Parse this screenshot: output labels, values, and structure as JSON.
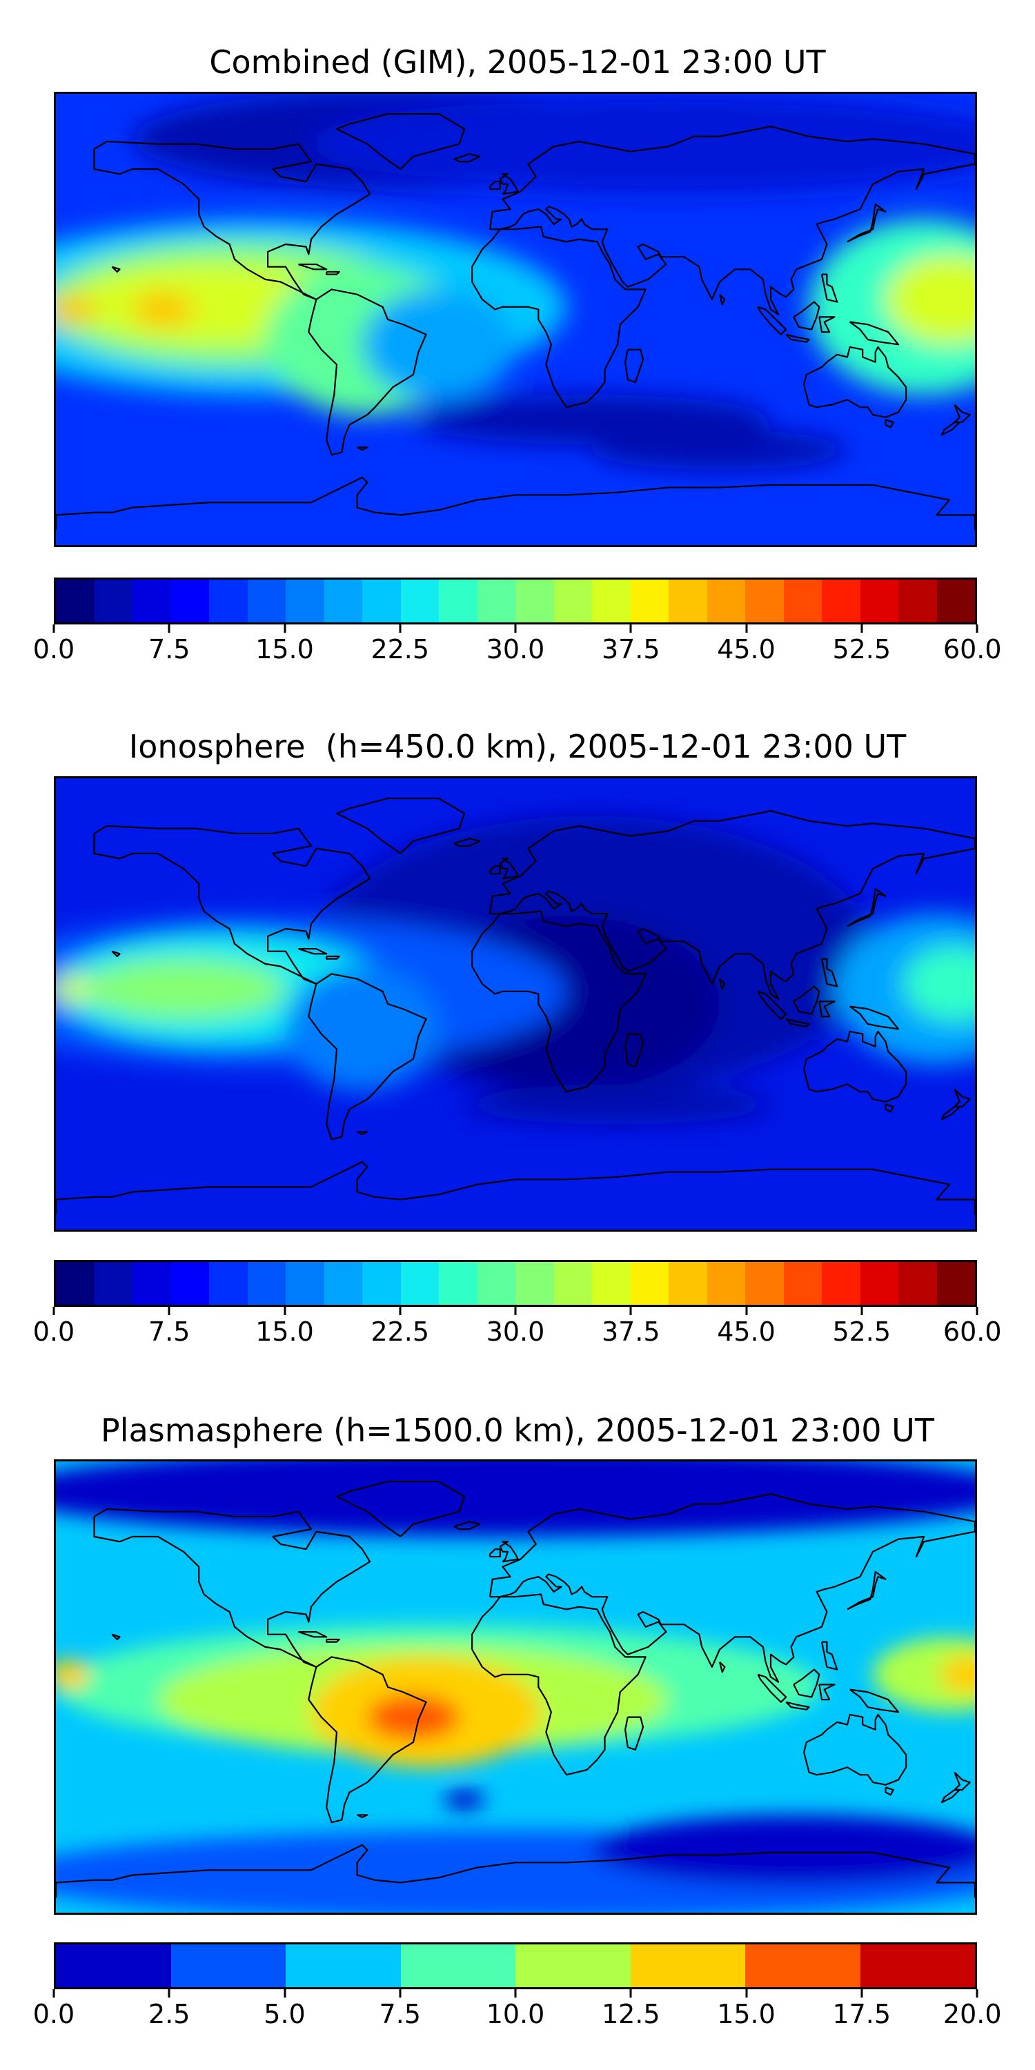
{
  "panels": [
    {
      "title": "Combined (GIM), 2005-12-01 23:00 UT",
      "colorbar": {
        "colors": [
          "#00007f",
          "#000ab0",
          "#0000e0",
          "#0000ff",
          "#0030ff",
          "#0055ff",
          "#007cff",
          "#00a4ff",
          "#00c8ff",
          "#10ecef",
          "#30ffc7",
          "#5cff9c",
          "#85ff73",
          "#b0ff47",
          "#d7ff20",
          "#ffef00",
          "#ffc400",
          "#ff9f00",
          "#ff7800",
          "#ff4a00",
          "#ff1e00",
          "#e00000",
          "#b80000",
          "#7f0000"
        ],
        "tick_labels": [
          "0.0",
          "7.5",
          "15.0",
          "22.5",
          "30.0",
          "37.5",
          "45.0",
          "52.5",
          "60.0"
        ]
      },
      "field": {
        "background": "#0032ff",
        "blobs": [
          {
            "lon": -40,
            "lat": 72,
            "rx": 110,
            "ry": 20,
            "color": "#000ab0"
          },
          {
            "lon": 60,
            "lat": 70,
            "rx": 140,
            "ry": 20,
            "color": "#0018d8"
          },
          {
            "lon": -100,
            "lat": 5,
            "rx": 120,
            "ry": 35,
            "color": "#00c8ff"
          },
          {
            "lon": -110,
            "lat": 6,
            "rx": 75,
            "ry": 25,
            "color": "#85ff73"
          },
          {
            "lon": -120,
            "lat": 6,
            "rx": 55,
            "ry": 16,
            "color": "#d7ff20"
          },
          {
            "lon": -138,
            "lat": 4,
            "rx": 12,
            "ry": 7,
            "color": "#ffc400"
          },
          {
            "lon": -174,
            "lat": 4,
            "rx": 10,
            "ry": 6,
            "color": "#ffc400"
          },
          {
            "lon": -58,
            "lat": -8,
            "rx": 40,
            "ry": 30,
            "color": "#5cff9c"
          },
          {
            "lon": -30,
            "lat": -10,
            "rx": 30,
            "ry": 22,
            "color": "#00a4ff"
          },
          {
            "lon": 160,
            "lat": 5,
            "rx": 45,
            "ry": 35,
            "color": "#30ffc7"
          },
          {
            "lon": 170,
            "lat": 8,
            "rx": 25,
            "ry": 18,
            "color": "#d7ff20"
          },
          {
            "lon": 30,
            "lat": -40,
            "rx": 70,
            "ry": 10,
            "color": "#000ab0"
          },
          {
            "lon": 80,
            "lat": -52,
            "rx": 50,
            "ry": 8,
            "color": "#000ab0"
          }
        ]
      }
    },
    {
      "title": "Ionosphere  (h=450.0 km), 2005-12-01 23:00 UT",
      "colorbar": {
        "colors": [
          "#00007f",
          "#000ab0",
          "#0000e0",
          "#0000ff",
          "#0030ff",
          "#0055ff",
          "#007cff",
          "#00a4ff",
          "#00c8ff",
          "#10ecef",
          "#30ffc7",
          "#5cff9c",
          "#85ff73",
          "#b0ff47",
          "#d7ff20",
          "#ffef00",
          "#ffc400",
          "#ff9f00",
          "#ff7800",
          "#ff4a00",
          "#ff1e00",
          "#e00000",
          "#b80000",
          "#7f0000"
        ],
        "tick_labels": [
          "0.0",
          "7.5",
          "15.0",
          "22.5",
          "30.0",
          "37.5",
          "45.0",
          "52.5",
          "60.0"
        ]
      },
      "field": {
        "background": "#0018e8",
        "blobs": [
          {
            "lon": 30,
            "lat": 20,
            "rx": 110,
            "ry": 55,
            "color": "#000ab0"
          },
          {
            "lon": 20,
            "lat": 0,
            "rx": 60,
            "ry": 35,
            "color": "#00008f"
          },
          {
            "lon": -100,
            "lat": 5,
            "rx": 120,
            "ry": 30,
            "color": "#0055ff"
          },
          {
            "lon": -115,
            "lat": 6,
            "rx": 65,
            "ry": 22,
            "color": "#10ecef"
          },
          {
            "lon": -130,
            "lat": 6,
            "rx": 40,
            "ry": 12,
            "color": "#85ff73"
          },
          {
            "lon": -174,
            "lat": 6,
            "rx": 8,
            "ry": 5,
            "color": "#d7ff20"
          },
          {
            "lon": 165,
            "lat": 6,
            "rx": 40,
            "ry": 30,
            "color": "#00a4ff"
          },
          {
            "lon": 172,
            "lat": 8,
            "rx": 20,
            "ry": 15,
            "color": "#30ffc7"
          },
          {
            "lon": -60,
            "lat": -10,
            "rx": 30,
            "ry": 25,
            "color": "#007cff"
          },
          {
            "lon": 40,
            "lat": -40,
            "rx": 60,
            "ry": 8,
            "color": "#000ab0"
          }
        ]
      }
    },
    {
      "title": "Plasmasphere (h=1500.0 km), 2005-12-01 23:00 UT",
      "colorbar": {
        "colors": [
          "#0000c8",
          "#0055ff",
          "#00c8ff",
          "#4dffb0",
          "#b0ff47",
          "#ffd000",
          "#ff5a00",
          "#c80000"
        ],
        "tick_labels": [
          "0.0",
          "2.5",
          "5.0",
          "7.5",
          "10.0",
          "12.5",
          "15.0",
          "17.5",
          "20.0"
        ]
      },
      "field": {
        "background": "#00c8ff",
        "blobs": [
          {
            "lon": 0,
            "lat": 78,
            "rx": 200,
            "ry": 18,
            "color": "#0000c8"
          },
          {
            "lon": 0,
            "lat": -75,
            "rx": 200,
            "ry": 18,
            "color": "#0055ff"
          },
          {
            "lon": 110,
            "lat": -65,
            "rx": 80,
            "ry": 14,
            "color": "#0000c8"
          },
          {
            "lon": -30,
            "lat": 0,
            "rx": 150,
            "ry": 25,
            "color": "#4dffb0"
          },
          {
            "lon": -40,
            "lat": -5,
            "rx": 100,
            "ry": 22,
            "color": "#b0ff47"
          },
          {
            "lon": -35,
            "lat": -10,
            "rx": 45,
            "ry": 22,
            "color": "#ffd000"
          },
          {
            "lon": -40,
            "lat": -12,
            "rx": 18,
            "ry": 9,
            "color": "#ff5a00"
          },
          {
            "lon": 170,
            "lat": 5,
            "rx": 30,
            "ry": 15,
            "color": "#b0ff47"
          },
          {
            "lon": 178,
            "lat": 5,
            "rx": 12,
            "ry": 8,
            "color": "#ffd000"
          },
          {
            "lon": -175,
            "lat": 5,
            "rx": 8,
            "ry": 6,
            "color": "#ffd000"
          },
          {
            "lon": -20,
            "lat": -45,
            "rx": 8,
            "ry": 4,
            "color": "#0000c8"
          }
        ]
      }
    }
  ]
}
